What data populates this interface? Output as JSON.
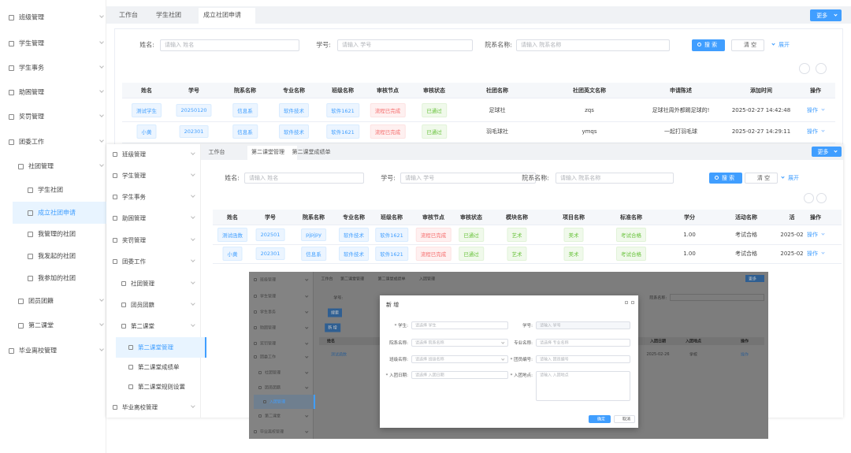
{
  "main": {
    "sidebar": [
      {
        "label": "班级管理"
      },
      {
        "label": "学生管理"
      },
      {
        "label": "学生事务"
      },
      {
        "label": "助困管理"
      },
      {
        "label": "奖罚管理"
      },
      {
        "label": "团委工作"
      },
      {
        "label": "社团管理"
      },
      {
        "label": "学生社团"
      },
      {
        "label": "成立社团申请",
        "active": true
      },
      {
        "label": "我管理的社团"
      },
      {
        "label": "我发起的社团"
      },
      {
        "label": "我参加的社团"
      },
      {
        "label": "团员团籍"
      },
      {
        "label": "第二课堂"
      },
      {
        "label": "毕业离校管理"
      }
    ],
    "tabs": [
      "工作台",
      "学生社团",
      "成立社团申请"
    ],
    "more": "更多",
    "search": {
      "fields": [
        {
          "label": "姓名:",
          "placeholder": "请输入 姓名"
        },
        {
          "label": "学号:",
          "placeholder": "请输入 学号"
        },
        {
          "label": "院系名称:",
          "placeholder": "请输入 院系名称"
        }
      ],
      "buttons": {
        "search": "搜 索",
        "clear": "清 空",
        "expand": "展开"
      }
    },
    "table": {
      "headers": [
        "姓名",
        "学号",
        "院系名称",
        "专业名称",
        "班级名称",
        "审核节点",
        "审核状态",
        "社团名称",
        "社团英文名称",
        "申请陈述",
        "添加时间",
        "操作"
      ],
      "rows": [
        [
          "测试学生",
          "20250120",
          "信息系",
          "软件技术",
          "软件1621",
          "流程已完成",
          "已通过",
          "足球社",
          "zqs",
          "足球社周外都踢足球的!",
          "2025-02-27 14:42:48",
          "操作"
        ],
        [
          "小黄",
          "202301",
          "信息系",
          "软件技术",
          "软件1621",
          "流程已完成",
          "已通过",
          "羽毛球社",
          "ymqs",
          "一起打羽毛球",
          "2025-02-27 14:29:11",
          "操作"
        ]
      ]
    }
  },
  "second": {
    "sidebar": [
      {
        "label": "班级管理"
      },
      {
        "label": "学生管理"
      },
      {
        "label": "学生事务"
      },
      {
        "label": "助困管理"
      },
      {
        "label": "奖罚管理"
      },
      {
        "label": "团委工作"
      },
      {
        "label": "社团管理"
      },
      {
        "label": "团员团籍"
      },
      {
        "label": "第二课堂"
      },
      {
        "label": "第二课堂管理",
        "active": true
      },
      {
        "label": "第二课堂成绩单"
      },
      {
        "label": "第二课堂规则设置"
      },
      {
        "label": "毕业离校管理"
      }
    ],
    "tabs": [
      "工作台",
      "第二课堂管理",
      "第二课堂成绩单"
    ],
    "more": "更多",
    "search": {
      "fields": [
        {
          "label": "姓名:",
          "placeholder": "请输入 姓名"
        },
        {
          "label": "学号:",
          "placeholder": "请输入 学号"
        },
        {
          "label": "院系名称:",
          "placeholder": "请输入 院系名称"
        }
      ],
      "buttons": {
        "search": "搜 索",
        "clear": "清 空",
        "expand": "展开"
      }
    },
    "table": {
      "headers": [
        "姓名",
        "学号",
        "院系名称",
        "专业名称",
        "班级名称",
        "审核节点",
        "审核状态",
        "模块名称",
        "项目名称",
        "标准名称",
        "学分",
        "活动名称",
        "活",
        "操作"
      ],
      "rows": [
        [
          "测试函数",
          "202501",
          "pjpjpy",
          "软件技术",
          "软件1621",
          "流程已完成",
          "已通过",
          "艺术",
          "美术",
          "考试合格",
          "1.00",
          "考试合格",
          "2025-02",
          "操作"
        ],
        [
          "小黄",
          "202301",
          "信息系",
          "软件技术",
          "软件1621",
          "流程已完成",
          "已通过",
          "艺术",
          "美术",
          "考试合格",
          "1.00",
          "考试合格",
          "2025-02",
          "操作"
        ]
      ]
    }
  },
  "dialog": {
    "background": {
      "sidebar": [
        {
          "label": "班级管理"
        },
        {
          "label": "学生管理"
        },
        {
          "label": "学生事务"
        },
        {
          "label": "助困管理"
        },
        {
          "label": "奖罚管理"
        },
        {
          "label": "团委工作"
        },
        {
          "label": "社团管理"
        },
        {
          "label": "团员团籍"
        },
        {
          "label": "入团管理",
          "active": true
        },
        {
          "label": "第二课堂"
        },
        {
          "label": "毕业离校管理"
        }
      ],
      "tabs": [
        "工作台",
        "第二课堂管理",
        "第二课堂成绩单",
        "入团管理"
      ],
      "more": "更多",
      "search_labels": [
        "学号:",
        "院系名称:"
      ],
      "buttons": [
        "搜索",
        "新 增"
      ],
      "table": {
        "headers": [
          "姓名",
          "入团日期",
          "入团地点",
          "操作"
        ],
        "row": [
          "测试函数",
          "2025-02-26",
          "学校",
          "操作"
        ]
      }
    },
    "title": "新 增",
    "fields": [
      {
        "label": "* 学生:",
        "placeholder": "请选择 学生"
      },
      {
        "label": "学号:",
        "placeholder": "请输入 学号"
      },
      {
        "label": "院系名称:",
        "placeholder": "请选择 院系名称"
      },
      {
        "label": "专业名称:",
        "placeholder": "请选择 专业名称"
      },
      {
        "label": "班级名称:",
        "placeholder": "请选择 班级名称"
      },
      {
        "label": "* 团员编号:",
        "placeholder": "请输入 团员编号"
      },
      {
        "label": "* 入团日期:",
        "placeholder": "请选择 入团日期"
      },
      {
        "label": "* 入团地点:",
        "placeholder": "请输入 入团地点"
      }
    ],
    "buttons": [
      "确定",
      "取消"
    ]
  }
}
